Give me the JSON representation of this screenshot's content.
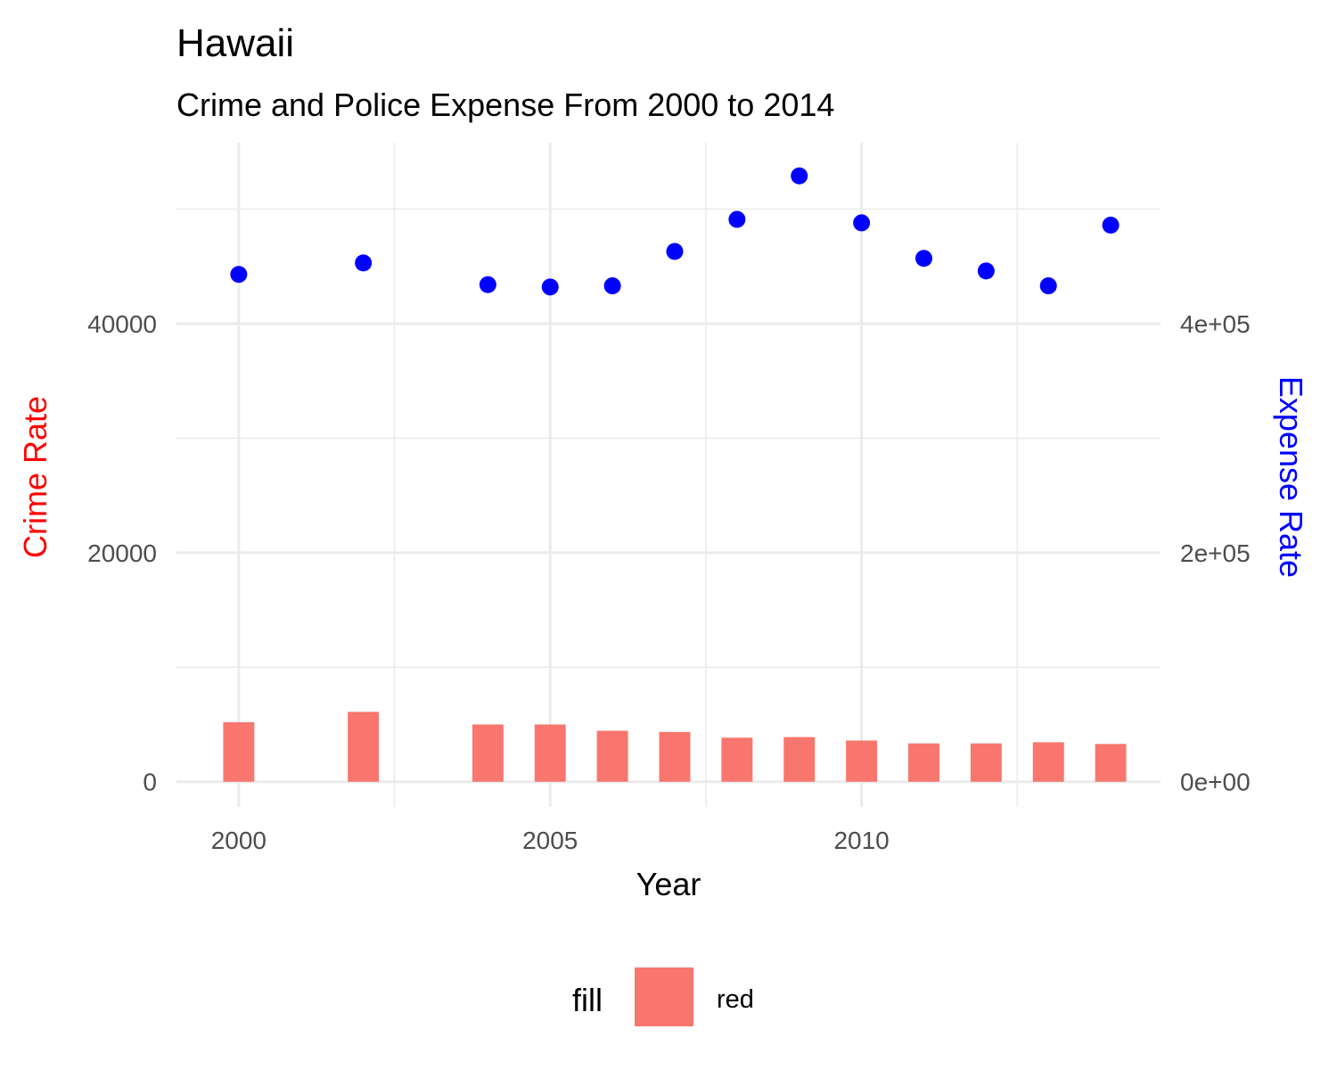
{
  "chart_data": {
    "type": "bar",
    "title": "Hawaii",
    "subtitle": "Crime and Police Expense From 2000 to 2014",
    "xlabel": "Year",
    "ylabel_left": "Crime Rate",
    "ylabel_right": "Expense Rate",
    "ylabel_left_color": "#ff0000",
    "ylabel_right_color": "#0000ff",
    "xlim": [
      1999.0,
      2014.8
    ],
    "ylim_left": [
      -2200,
      55800
    ],
    "ylim_right": [
      -22000,
      558000
    ],
    "x_ticks": [
      2000,
      2005,
      2010
    ],
    "x_tick_labels": [
      "2000",
      "2005",
      "2010"
    ],
    "y_left_ticks": [
      0,
      20000,
      40000
    ],
    "y_left_tick_labels": [
      "0",
      "20000",
      "40000"
    ],
    "y_right_ticks": [
      0,
      200000,
      400000
    ],
    "y_right_tick_labels": [
      "0e+00",
      "2e+05",
      "4e+05"
    ],
    "grid": true,
    "legend_position": "bottom",
    "series": [
      {
        "kind": "bar",
        "axis": "left",
        "color": "#f8766d",
        "x": [
          2000,
          2002,
          2004,
          2005,
          2006,
          2007,
          2008,
          2009,
          2010,
          2011,
          2012,
          2013,
          2014
        ],
        "values": [
          5200,
          6100,
          5000,
          5000,
          4450,
          4350,
          3850,
          3900,
          3600,
          3350,
          3350,
          3450,
          3300
        ]
      },
      {
        "kind": "scatter",
        "axis": "right",
        "color": "#0000ff",
        "x": [
          2000,
          2002,
          2004,
          2005,
          2006,
          2007,
          2008,
          2009,
          2010,
          2011,
          2012,
          2013,
          2014
        ],
        "values": [
          443000,
          453000,
          434000,
          432000,
          433000,
          463000,
          491000,
          529000,
          488000,
          457000,
          446000,
          433000,
          486000
        ]
      }
    ],
    "legend": {
      "title": "fill",
      "items": [
        {
          "label": "red",
          "color": "#f8766d"
        }
      ]
    }
  }
}
